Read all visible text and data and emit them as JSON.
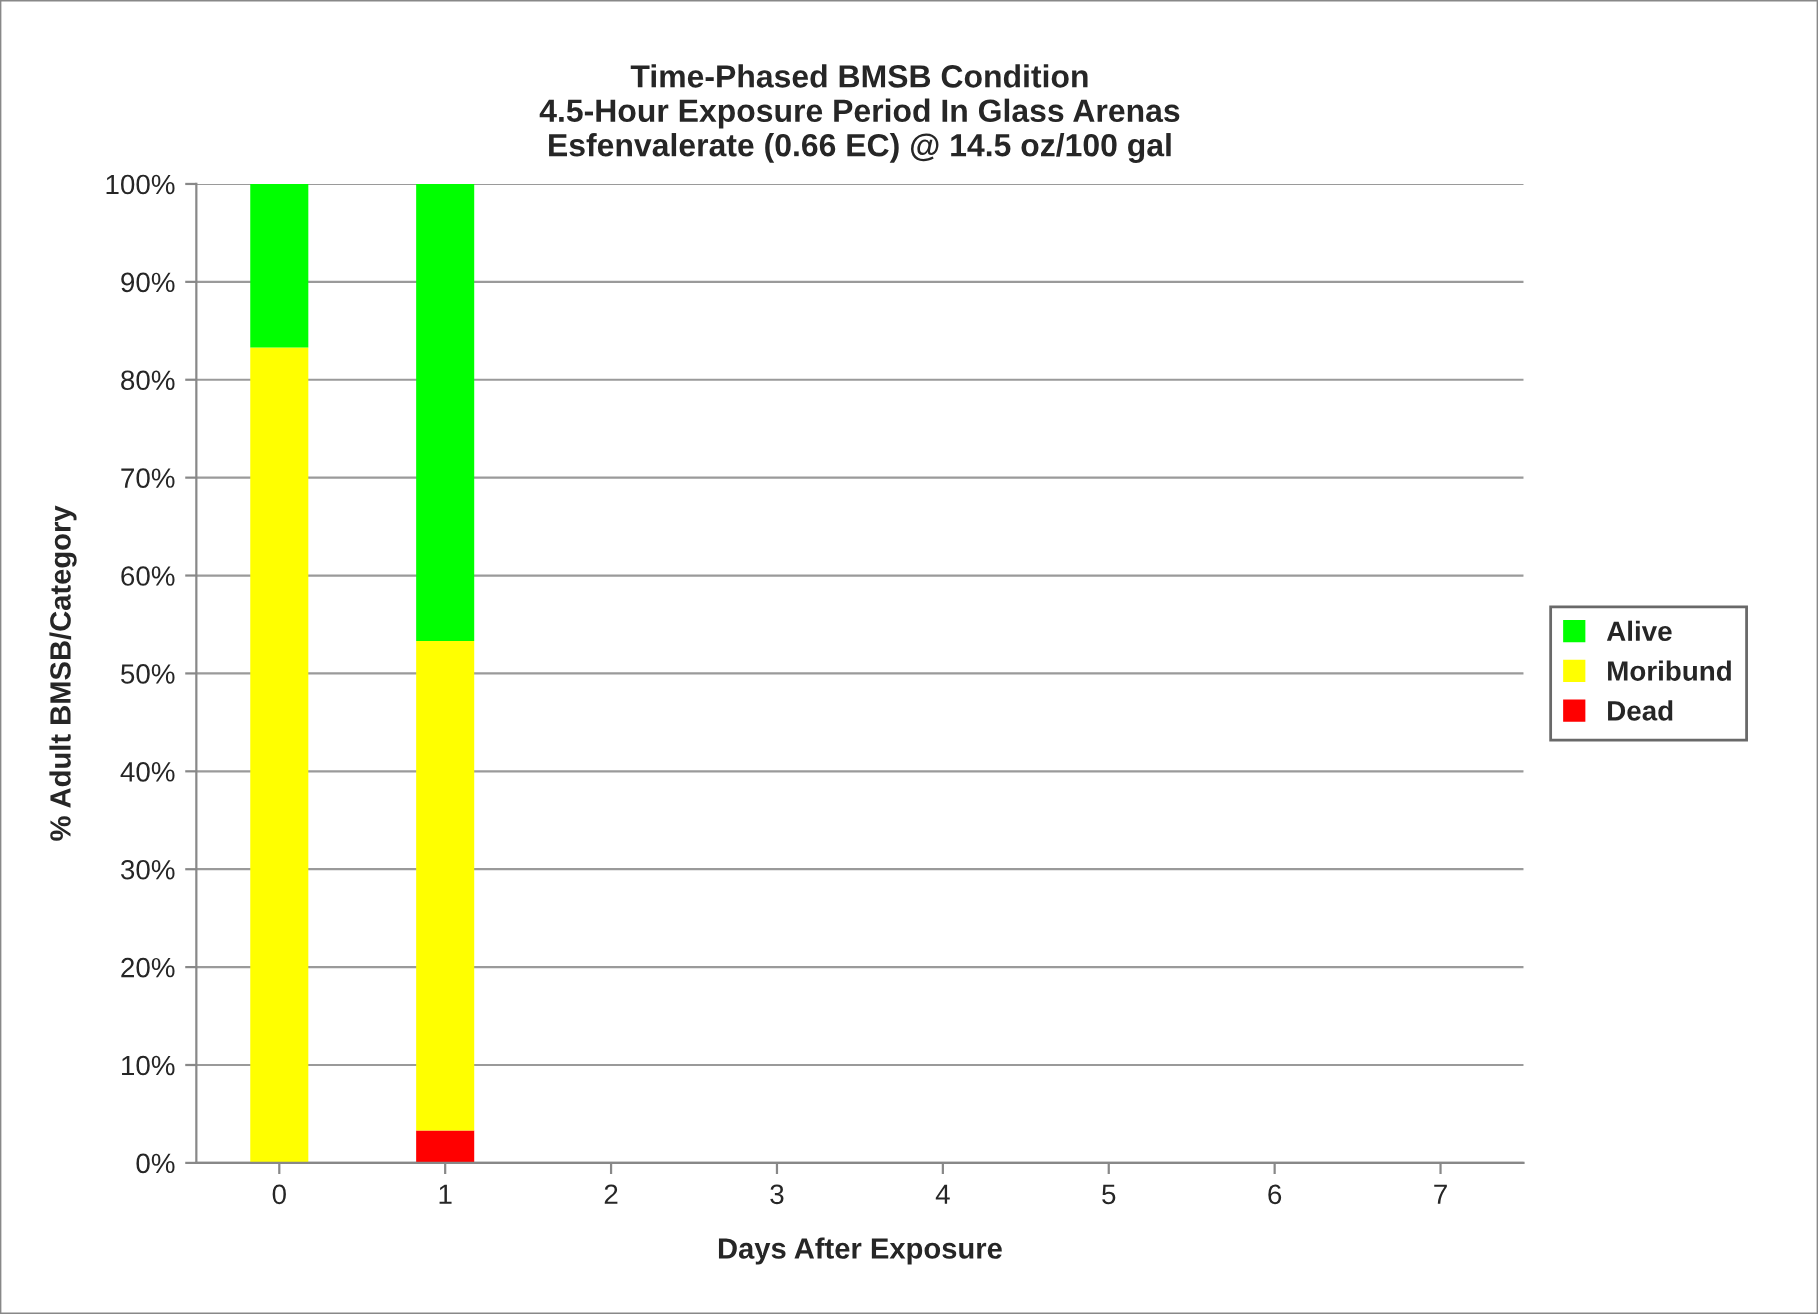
{
  "chart_data": {
    "type": "bar",
    "stacked": true,
    "title": "Time-Phased BMSB Condition\n4.5-Hour Exposure Period In Glass Arenas\nEsfenvalerate (0.66 EC) @ 14.5 oz/100 gal",
    "xlabel": "Days After Exposure",
    "ylabel": "% Adult BMSB/Category",
    "categories": [
      "0",
      "1",
      "2",
      "3",
      "4",
      "5",
      "6",
      "7"
    ],
    "series": [
      {
        "name": "Dead",
        "color": "#ff0000",
        "values": [
          0,
          3.3,
          null,
          null,
          null,
          null,
          null,
          null
        ]
      },
      {
        "name": "Moribund",
        "color": "#ffff00",
        "values": [
          83.3,
          50,
          null,
          null,
          null,
          null,
          null,
          null
        ]
      },
      {
        "name": "Alive",
        "color": "#00ff00",
        "values": [
          16.7,
          46.7,
          null,
          null,
          null,
          null,
          null,
          null
        ]
      }
    ],
    "ylim": [
      0,
      100
    ],
    "yticks": [
      {
        "value": 0,
        "label": "0%"
      },
      {
        "value": 10,
        "label": "10%"
      },
      {
        "value": 20,
        "label": "20%"
      },
      {
        "value": 30,
        "label": "30%"
      },
      {
        "value": 40,
        "label": "40%"
      },
      {
        "value": 50,
        "label": "50%"
      },
      {
        "value": 60,
        "label": "60%"
      },
      {
        "value": 70,
        "label": "70%"
      },
      {
        "value": 80,
        "label": "80%"
      },
      {
        "value": 90,
        "label": "90%"
      },
      {
        "value": 100,
        "label": "100%"
      }
    ],
    "grid": "y",
    "legend": "right"
  }
}
